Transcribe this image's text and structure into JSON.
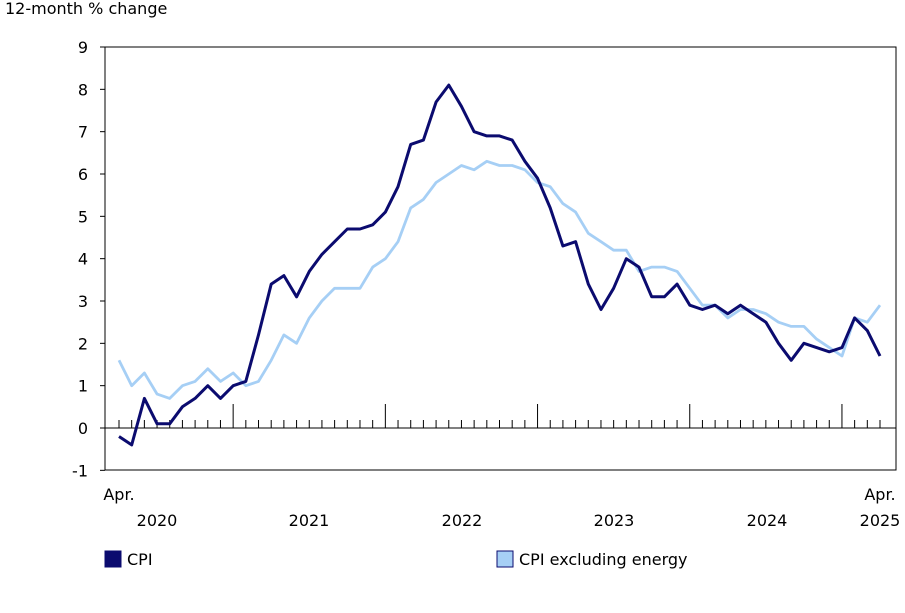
{
  "chart_data": {
    "type": "line",
    "ylabel": "12-month % change",
    "ylim": [
      -1,
      9
    ],
    "yticks": [
      "9",
      "8",
      "7",
      "6",
      "5",
      "4",
      "3",
      "2",
      "1",
      "0",
      "-1"
    ],
    "x_start_label": "Apr.",
    "x_end_label": "Apr.",
    "year_labels": [
      "2020",
      "2021",
      "2022",
      "2023",
      "2024",
      "2025"
    ],
    "x_start": "2020-04",
    "x_end": "2025-04",
    "grid": false,
    "legend_placement": "bottom",
    "series": [
      {
        "name": "CPI",
        "color": "#0b0b6f",
        "values": [
          -0.2,
          -0.4,
          0.7,
          0.1,
          0.1,
          0.5,
          0.7,
          1.0,
          0.7,
          1.0,
          1.1,
          2.2,
          3.4,
          3.6,
          3.1,
          3.7,
          4.1,
          4.4,
          4.7,
          4.7,
          4.8,
          5.1,
          5.7,
          6.7,
          6.8,
          7.7,
          8.1,
          7.6,
          7.0,
          6.9,
          6.9,
          6.8,
          6.3,
          5.9,
          5.2,
          4.3,
          4.4,
          3.4,
          2.8,
          3.3,
          4.0,
          3.8,
          3.1,
          3.1,
          3.4,
          2.9,
          2.8,
          2.9,
          2.7,
          2.9,
          2.7,
          2.5,
          2.0,
          1.6,
          2.0,
          1.9,
          1.8,
          1.9,
          2.6,
          2.3,
          1.7
        ]
      },
      {
        "name": "CPI excluding energy",
        "color": "#a6cff5",
        "values": [
          1.6,
          1.0,
          1.3,
          0.8,
          0.7,
          1.0,
          1.1,
          1.4,
          1.1,
          1.3,
          1.0,
          1.1,
          1.6,
          2.2,
          2.0,
          2.6,
          3.0,
          3.3,
          3.3,
          3.3,
          3.8,
          4.0,
          4.4,
          5.2,
          5.4,
          5.8,
          6.0,
          6.2,
          6.1,
          6.3,
          6.2,
          6.2,
          6.1,
          5.8,
          5.7,
          5.3,
          5.1,
          4.6,
          4.4,
          4.2,
          4.2,
          3.7,
          3.8,
          3.8,
          3.7,
          3.3,
          2.9,
          2.9,
          2.6,
          2.8,
          2.8,
          2.7,
          2.5,
          2.4,
          2.4,
          2.1,
          1.9,
          1.7,
          2.6,
          2.5,
          2.9
        ]
      }
    ]
  }
}
